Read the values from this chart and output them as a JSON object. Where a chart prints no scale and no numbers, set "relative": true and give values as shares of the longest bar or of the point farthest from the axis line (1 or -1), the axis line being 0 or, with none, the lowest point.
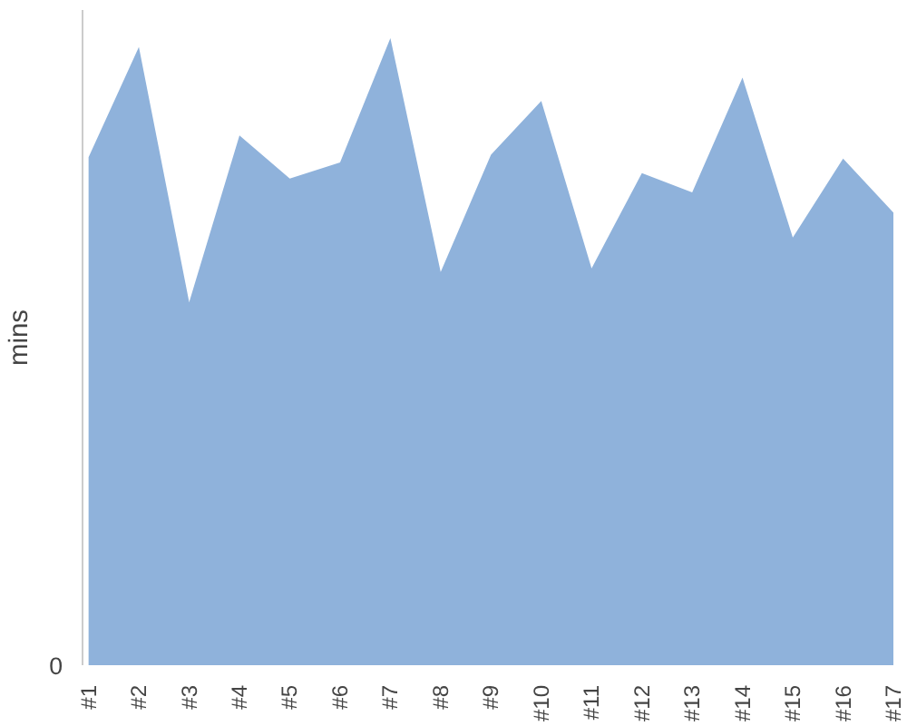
{
  "chart_data": {
    "type": "area",
    "ylabel": "mins",
    "relative": true,
    "annotations": [
      "0"
    ],
    "categories": [
      "#1",
      "#2",
      "#3",
      "#4",
      "#5",
      "#6",
      "#7",
      "#8",
      "#9",
      "#10",
      "#11",
      "#12",
      "#13",
      "#14",
      "#15",
      "#16",
      "#17"
    ],
    "series": [
      {
        "color": "#8fb2db",
        "values": [
          0.81,
          0.986,
          0.579,
          0.845,
          0.776,
          0.802,
          1,
          0.627,
          0.814,
          0.9,
          0.633,
          0.785,
          0.754,
          0.937,
          0.682,
          0.808,
          0.722
        ]
      }
    ]
  }
}
